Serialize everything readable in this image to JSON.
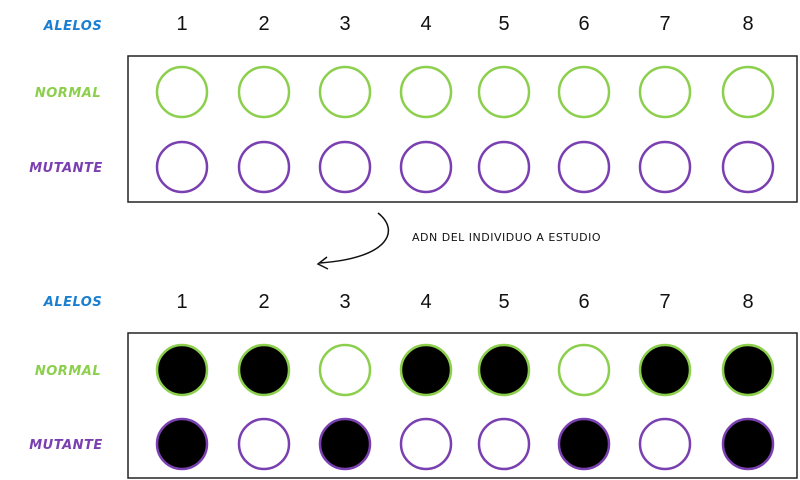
{
  "colors": {
    "alelos": "#1a7fd0",
    "normal": "#8ccf4d",
    "mutante": "#7a3fb0",
    "fill": "#000000",
    "box": "#222222"
  },
  "panels": [
    {
      "alelos_label": "ALELOS",
      "normal_label": "NORMAL",
      "mutante_label": "MUTANTE",
      "alleles": [
        "1",
        "2",
        "3",
        "4",
        "5",
        "6",
        "7",
        "8"
      ],
      "normal_filled": [
        false,
        false,
        false,
        false,
        false,
        false,
        false,
        false
      ],
      "mutante_filled": [
        false,
        false,
        false,
        false,
        false,
        false,
        false,
        false
      ]
    },
    {
      "alelos_label": "ALELOS",
      "normal_label": "NORMAL",
      "mutante_label": "MUTANTE",
      "alleles": [
        "1",
        "2",
        "3",
        "4",
        "5",
        "6",
        "7",
        "8"
      ],
      "normal_filled": [
        true,
        true,
        false,
        true,
        true,
        false,
        true,
        true
      ],
      "mutante_filled": [
        true,
        false,
        true,
        false,
        false,
        true,
        false,
        true
      ]
    }
  ],
  "arrow_note": "ADN DEL INDIVIDUO A ESTUDIO"
}
